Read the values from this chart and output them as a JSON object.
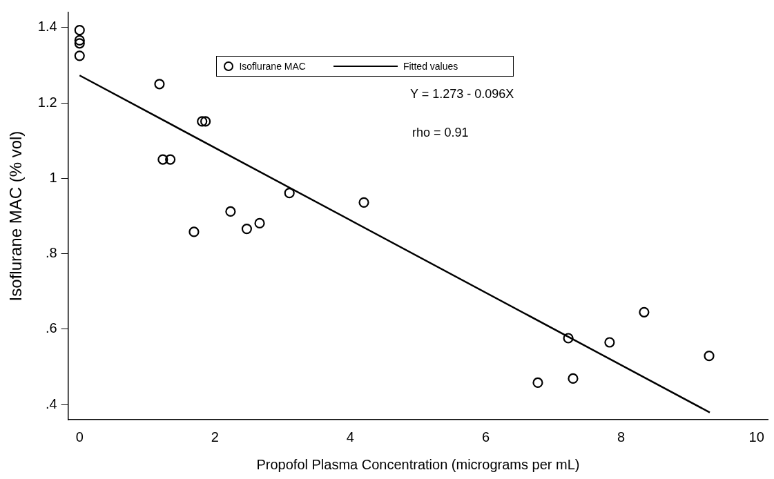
{
  "chart_data": {
    "type": "scatter",
    "xlabel": "Propofol Plasma Concentration (micrograms per mL)",
    "ylabel": "Isoflurane MAC (% vol)",
    "xlim": [
      -0.17,
      10.17
    ],
    "ylim": [
      0.36,
      1.44
    ],
    "xticks": [
      0,
      2,
      4,
      6,
      8,
      10
    ],
    "yticks": [
      {
        "value": 0.4,
        "label": ".4"
      },
      {
        "value": 0.6,
        "label": ".6"
      },
      {
        "value": 0.8,
        "label": ".8"
      },
      1,
      {
        "value": 1.2,
        "label": "1.2"
      },
      {
        "value": 1.4,
        "label": "1.4"
      }
    ],
    "legend": "top",
    "annotations": [
      "Y = 1.273 - 0.096X",
      "rho = 0.91"
    ],
    "series": [
      {
        "name": "Isoflurane MAC",
        "type": "scatter",
        "marker": "circle",
        "color": "#000000",
        "x": [
          0,
          0,
          0,
          0,
          1.18,
          1.23,
          1.34,
          1.81,
          1.86,
          1.69,
          2.23,
          2.47,
          2.66,
          3.1,
          4.2,
          6.77,
          7.22,
          7.29,
          7.83,
          8.34,
          9.3
        ],
        "values": [
          1.393,
          1.366,
          1.358,
          1.325,
          1.25,
          1.05,
          1.05,
          1.151,
          1.151,
          0.858,
          0.912,
          0.866,
          0.881,
          0.961,
          0.936,
          0.458,
          0.576,
          0.469,
          0.565,
          0.645,
          0.529
        ]
      },
      {
        "name": "Fitted values",
        "type": "line",
        "marker": "none",
        "color": "#000000",
        "x": [
          0,
          9.31
        ],
        "values": [
          1.273,
          0.379
        ]
      }
    ]
  }
}
